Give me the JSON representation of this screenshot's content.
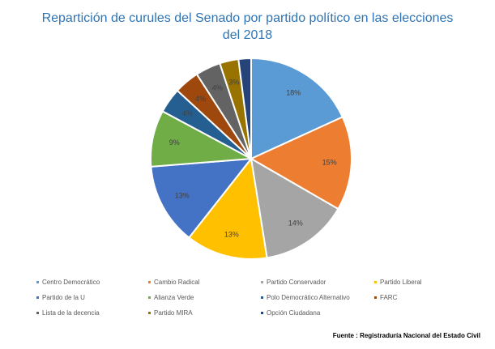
{
  "chart_data": {
    "type": "pie",
    "title": "Repartición de curules del Senado por partido político en las elecciones del 2018",
    "title_lines": [
      "Repartición de curules del Senado por partido político en las elecciones",
      "del 2018"
    ],
    "slices": [
      {
        "label": "Centro Democrático",
        "value": 18,
        "data_label": "18%",
        "color": "#5b9bd5"
      },
      {
        "label": "Cambio Radical",
        "value": 15,
        "data_label": "15%",
        "color": "#ed7d31"
      },
      {
        "label": "Partido Conservador",
        "value": 14,
        "data_label": "14%",
        "color": "#a5a5a5"
      },
      {
        "label": "Partido Liberal",
        "value": 13,
        "data_label": "13%",
        "color": "#ffc000"
      },
      {
        "label": "Partido de la U",
        "value": 13,
        "data_label": "13%",
        "color": "#4472c4"
      },
      {
        "label": "Alianza Verde",
        "value": 9,
        "data_label": "9%",
        "color": "#70ad47"
      },
      {
        "label": "Polo Democrático Alternativo",
        "value": 4,
        "data_label": "4%",
        "color": "#255e91"
      },
      {
        "label": "FARC",
        "value": 4,
        "data_label": "4%",
        "color": "#9e480e"
      },
      {
        "label": "Lista de la decencia",
        "value": 4,
        "data_label": "4%",
        "color": "#636363"
      },
      {
        "label": "Partido MIRA",
        "value": 3,
        "data_label": "3%",
        "color": "#997300"
      },
      {
        "label": "Opción Ciudadana",
        "value": 2,
        "data_label": "",
        "color": "#264478"
      }
    ],
    "legend_position": "bottom"
  },
  "source_note": "Fuente : Registraduría Nacional del Estado Civil"
}
